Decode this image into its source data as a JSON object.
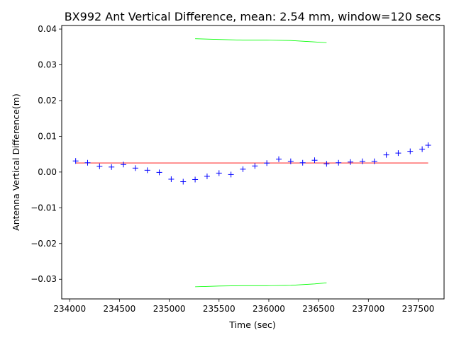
{
  "chart_data": {
    "type": "scatter",
    "title": "BX992 Ant Vertical Difference, mean: 2.54 mm, window=120 secs",
    "xlabel": "Time (sec)",
    "ylabel": "Antenna Vertical Difference(m)",
    "xlim": [
      233920,
      237760
    ],
    "ylim": [
      -0.0355,
      0.041
    ],
    "xticks": [
      234000,
      234500,
      235000,
      235500,
      236000,
      236500,
      237000,
      237500
    ],
    "yticks": [
      -0.03,
      -0.02,
      -0.01,
      0.0,
      0.01,
      0.02,
      0.03,
      0.04
    ],
    "xtick_labels": [
      "234000",
      "234500",
      "235000",
      "235500",
      "236000",
      "236500",
      "237000",
      "237500"
    ],
    "ytick_labels": [
      "−0.03",
      "−0.02",
      "−0.01",
      "0.00",
      "0.01",
      "0.02",
      "0.03",
      "0.04"
    ],
    "grid": false,
    "series": [
      {
        "marker": "plus",
        "color": "#0000ff",
        "x": [
          234060,
          234180,
          234300,
          234420,
          234540,
          234660,
          234780,
          234900,
          235020,
          235140,
          235260,
          235380,
          235500,
          235620,
          235740,
          235860,
          235980,
          236100,
          236220,
          236340,
          236460,
          236580,
          236700,
          236820,
          236940,
          237060,
          237180,
          237300,
          237420,
          237540,
          237600
        ],
        "y": [
          0.0031,
          0.0026,
          0.0016,
          0.0014,
          0.0021,
          0.0011,
          0.0005,
          -0.0001,
          -0.002,
          -0.0027,
          -0.0021,
          -0.0012,
          -0.0003,
          -0.0007,
          0.0008,
          0.0017,
          0.0025,
          0.0036,
          0.003,
          0.0026,
          0.0033,
          0.0023,
          0.0026,
          0.0028,
          0.003,
          0.003,
          0.0048,
          0.0053,
          0.0058,
          0.0064,
          0.0075
        ]
      },
      {
        "marker": "line",
        "color": "#ff0000",
        "x": [
          234060,
          237600
        ],
        "y": [
          0.00254,
          0.00254
        ]
      },
      {
        "marker": "line",
        "color": "#00ff00",
        "x": [
          235260,
          235500,
          235740,
          235980,
          236220,
          236460,
          236580
        ],
        "y": [
          0.0373,
          0.0371,
          0.0369,
          0.0369,
          0.0368,
          0.0364,
          0.0362
        ]
      },
      {
        "marker": "line",
        "color": "#00ff00",
        "x": [
          235260,
          235500,
          235740,
          235980,
          236220,
          236460,
          236580
        ],
        "y": [
          -0.0321,
          -0.0319,
          -0.0318,
          -0.0318,
          -0.0317,
          -0.0313,
          -0.031
        ]
      }
    ]
  }
}
